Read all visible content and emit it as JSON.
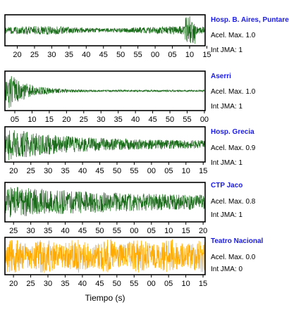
{
  "xlabel": "Tiempo (s)",
  "accel_label": "Acel. Max.",
  "int_label": "Int JMA:",
  "chart_data": [
    {
      "type": "line",
      "station": "Hosp. B. Aires, Puntare",
      "acel_max": "1.0",
      "int_jma": "1",
      "ticks": [
        "20",
        "25",
        "30",
        "35",
        "40",
        "45",
        "50",
        "55",
        "00",
        "05",
        "10",
        "15"
      ],
      "color": "#1a6b1a",
      "amplitude_profile": "low steady with sharp spike near 10"
    },
    {
      "type": "line",
      "station": "Aserri",
      "acel_max": "1.0",
      "int_jma": "1",
      "ticks": [
        "05",
        "10",
        "15",
        "20",
        "25",
        "30",
        "35",
        "40",
        "45",
        "50",
        "55",
        "00"
      ],
      "color": "#1a6b1a",
      "amplitude_profile": "strong at start, decaying"
    },
    {
      "type": "line",
      "station": "Hosp. Grecia",
      "acel_max": "0.9",
      "int_jma": "1",
      "ticks": [
        "20",
        "25",
        "30",
        "35",
        "40",
        "45",
        "50",
        "55",
        "00",
        "05",
        "10",
        "15"
      ],
      "color": "#1a6b1a",
      "amplitude_profile": "strong near start, gradual decay"
    },
    {
      "type": "line",
      "station": "CTP Jaco",
      "acel_max": "0.8",
      "int_jma": "1",
      "ticks": [
        "25",
        "30",
        "35",
        "40",
        "45",
        "50",
        "55",
        "00",
        "05",
        "10",
        "15",
        "20"
      ],
      "color": "#1a6b1a",
      "amplitude_profile": "sustained, slowly decaying"
    },
    {
      "type": "line",
      "station": "Teatro Nacional",
      "acel_max": "0.0",
      "int_jma": "0",
      "ticks": [
        "20",
        "25",
        "30",
        "35",
        "40",
        "45",
        "50",
        "55",
        "00",
        "05",
        "10",
        "15"
      ],
      "color": "#ffaa00",
      "amplitude_profile": "uniform noise full amplitude"
    }
  ]
}
